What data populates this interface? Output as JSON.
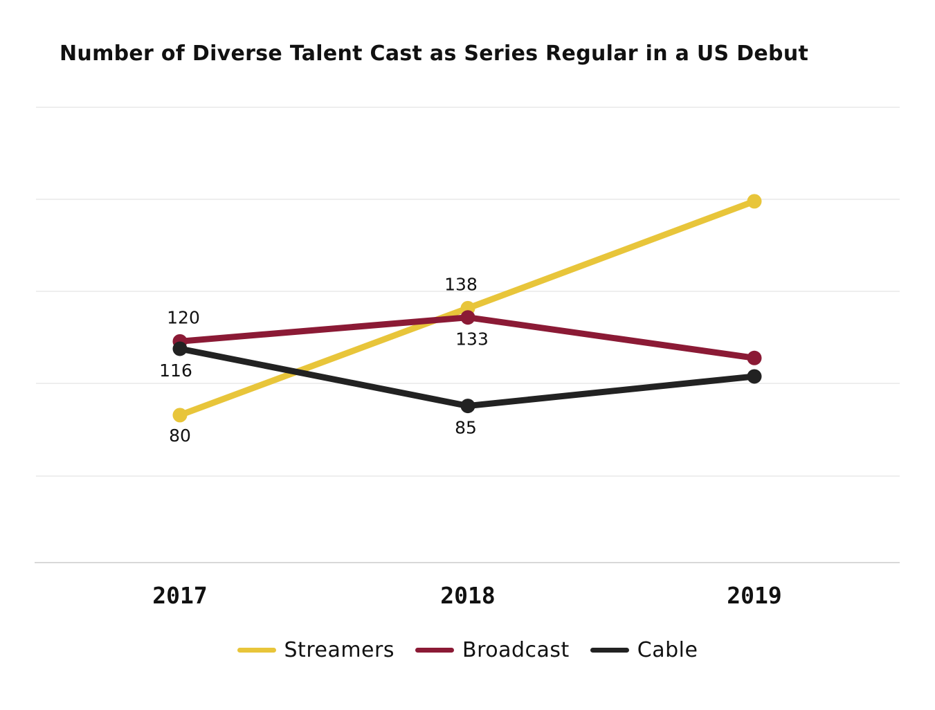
{
  "chart_data": {
    "type": "line",
    "title": "Number of Diverse Talent Cast as Series Regular in a US Debut",
    "categories": [
      "2017",
      "2018",
      "2019"
    ],
    "series": [
      {
        "name": "Streamers",
        "color": "#E8C53A",
        "values": [
          80,
          138,
          196
        ],
        "labels": [
          "80",
          "138",
          ""
        ]
      },
      {
        "name": "Broadcast",
        "color": "#8B1A35",
        "values": [
          120,
          133,
          111
        ],
        "labels": [
          "120",
          "133",
          ""
        ]
      },
      {
        "name": "Cable",
        "color": "#222222",
        "values": [
          116,
          85,
          101
        ],
        "labels": [
          "116",
          "85",
          ""
        ]
      }
    ],
    "xlabel": "",
    "ylabel": "",
    "ylim": [
      0,
      247
    ],
    "grid": true,
    "legend": "bottom"
  }
}
